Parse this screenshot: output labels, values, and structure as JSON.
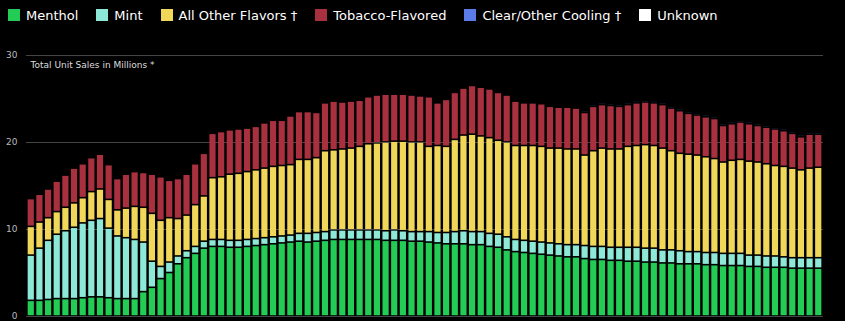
{
  "chart_data": {
    "type": "bar",
    "title": "Total Unit Sales in Millions *",
    "stacked": true,
    "grid": true,
    "legend": "top-left",
    "tick_labels": "y",
    "ylim": [
      0,
      30
    ],
    "yticks": [
      0,
      10,
      20,
      30
    ],
    "categories": [
      null,
      null,
      null,
      null,
      null,
      null,
      null,
      null,
      null,
      null,
      null,
      null,
      null,
      null,
      null,
      null,
      null,
      null,
      null,
      null,
      null,
      null,
      null,
      null,
      null,
      null,
      null,
      null,
      null,
      null,
      null,
      null,
      null,
      null,
      null,
      null,
      null,
      null,
      null,
      null,
      null,
      null,
      null,
      null,
      null,
      null,
      null,
      null,
      null,
      null,
      null,
      null,
      null,
      null,
      null,
      null,
      null,
      null,
      null,
      null,
      null,
      null,
      null,
      null,
      null,
      null,
      null,
      null,
      null,
      null,
      null,
      null,
      null,
      null,
      null,
      null,
      null,
      null,
      null,
      null,
      null,
      null,
      null,
      null,
      null,
      null,
      null,
      null,
      null,
      null,
      null,
      null
    ],
    "series": [
      {
        "name": "Menthol",
        "color": "#22cc55",
        "values": [
          1.8,
          1.8,
          1.9,
          2.0,
          2.0,
          2.0,
          2.1,
          2.2,
          2.2,
          2.1,
          2.0,
          2.0,
          2.0,
          2.8,
          3.3,
          4.3,
          5.0,
          6.0,
          6.7,
          7.2,
          7.8,
          8.0,
          8.0,
          7.9,
          7.9,
          8.0,
          8.1,
          8.2,
          8.3,
          8.4,
          8.5,
          8.6,
          8.5,
          8.6,
          8.7,
          8.8,
          8.8,
          8.8,
          8.8,
          8.8,
          8.8,
          8.7,
          8.7,
          8.7,
          8.6,
          8.6,
          8.5,
          8.4,
          8.3,
          8.3,
          8.3,
          8.2,
          8.2,
          8.0,
          7.9,
          7.6,
          7.4,
          7.3,
          7.2,
          7.1,
          7.0,
          6.9,
          6.8,
          6.8,
          6.6,
          6.5,
          6.5,
          6.4,
          6.4,
          6.3,
          6.3,
          6.2,
          6.2,
          6.1,
          6.1,
          6.0,
          6.0,
          6.0,
          5.9,
          5.9,
          5.8,
          5.8,
          5.8,
          5.7,
          5.7,
          5.6,
          5.6,
          5.6,
          5.5,
          5.5,
          5.5,
          5.5
        ]
      },
      {
        "name": "Mint",
        "color": "#8ee8d8",
        "values": [
          5.2,
          6.0,
          6.8,
          7.4,
          7.8,
          8.2,
          8.6,
          8.8,
          9.0,
          8.0,
          7.2,
          7.0,
          6.8,
          5.7,
          3.0,
          1.4,
          1.2,
          0.9,
          0.8,
          0.8,
          0.8,
          0.8,
          0.8,
          0.8,
          0.8,
          0.8,
          0.8,
          0.8,
          0.8,
          0.8,
          0.8,
          0.9,
          1.0,
          1.0,
          1.0,
          1.1,
          1.1,
          1.1,
          1.1,
          1.1,
          1.1,
          1.1,
          1.2,
          1.1,
          1.1,
          1.1,
          1.2,
          1.2,
          1.3,
          1.4,
          1.5,
          1.5,
          1.5,
          1.5,
          1.5,
          1.5,
          1.4,
          1.4,
          1.4,
          1.4,
          1.4,
          1.4,
          1.4,
          1.4,
          1.5,
          1.5,
          1.5,
          1.5,
          1.5,
          1.6,
          1.6,
          1.6,
          1.6,
          1.5,
          1.5,
          1.5,
          1.4,
          1.4,
          1.4,
          1.4,
          1.4,
          1.4,
          1.4,
          1.3,
          1.3,
          1.3,
          1.3,
          1.2,
          1.2,
          1.2,
          1.2,
          1.2
        ]
      },
      {
        "name": "All Other Flavors †",
        "color": "#f0d75a",
        "values": [
          3.3,
          3.0,
          2.6,
          2.6,
          2.7,
          2.8,
          2.9,
          3.3,
          3.4,
          3.3,
          3.0,
          3.4,
          3.8,
          4.0,
          5.5,
          5.3,
          5.1,
          4.3,
          4.1,
          4.8,
          5.2,
          7.1,
          7.2,
          7.6,
          7.7,
          7.8,
          7.9,
          8.0,
          8.1,
          8.1,
          8.1,
          8.5,
          8.5,
          8.6,
          9.3,
          9.2,
          9.3,
          9.4,
          9.6,
          9.9,
          10.0,
          10.2,
          10.2,
          10.3,
          10.3,
          10.3,
          9.8,
          10.0,
          9.9,
          10.6,
          11.0,
          11.2,
          11.0,
          11.0,
          10.8,
          10.9,
          10.8,
          10.9,
          11.0,
          11.0,
          10.9,
          11.0,
          11.0,
          11.0,
          10.4,
          11.0,
          11.3,
          11.3,
          11.3,
          11.6,
          11.7,
          11.9,
          11.8,
          11.7,
          11.4,
          11.2,
          11.2,
          11.1,
          11.0,
          10.8,
          10.5,
          10.7,
          10.8,
          10.8,
          10.7,
          10.6,
          10.4,
          10.4,
          10.3,
          10.1,
          10.3,
          10.4
        ]
      },
      {
        "name": "Tobacco-Flavored",
        "color": "#a8303f",
        "values": [
          3.2,
          3.2,
          3.3,
          3.5,
          3.7,
          4.0,
          3.9,
          3.9,
          4.0,
          4.0,
          3.6,
          3.9,
          4.0,
          4.0,
          4.5,
          5.0,
          4.3,
          4.6,
          4.7,
          4.7,
          4.9,
          5.1,
          5.2,
          5.1,
          5.1,
          5.0,
          5.0,
          5.2,
          5.3,
          5.2,
          5.6,
          5.5,
          5.5,
          5.2,
          5.5,
          5.6,
          5.4,
          5.4,
          5.3,
          5.4,
          5.5,
          5.5,
          5.4,
          5.4,
          5.4,
          5.3,
          5.7,
          4.9,
          5.4,
          5.4,
          5.4,
          5.6,
          5.6,
          5.6,
          5.5,
          5.4,
          5.1,
          4.9,
          4.9,
          4.9,
          4.8,
          4.7,
          4.8,
          4.7,
          4.9,
          5.1,
          5.0,
          5.0,
          4.9,
          4.8,
          4.9,
          4.9,
          4.9,
          5.0,
          4.9,
          4.9,
          4.7,
          4.6,
          4.6,
          4.6,
          4.2,
          4.2,
          4.3,
          4.3,
          4.2,
          4.2,
          4.2,
          4.1,
          4.0,
          3.8,
          3.9,
          3.8
        ]
      },
      {
        "name": "Clear/Other Cooling †",
        "color": "#5b7be8",
        "values": [
          0,
          0,
          0,
          0,
          0,
          0,
          0,
          0,
          0,
          0,
          0,
          0,
          0,
          0,
          0,
          0,
          0,
          0,
          0,
          0,
          0,
          0,
          0,
          0,
          0,
          0,
          0,
          0,
          0,
          0,
          0,
          0,
          0,
          0,
          0,
          0,
          0,
          0,
          0,
          0,
          0,
          0,
          0,
          0,
          0,
          0,
          0,
          0,
          0,
          0,
          0,
          0,
          0,
          0,
          0,
          0,
          0,
          0,
          0,
          0,
          0,
          0,
          0,
          0,
          0.2,
          0.2,
          0.2,
          0.2,
          0.2,
          0.2,
          0.2,
          0.2,
          0.2,
          0.2,
          0.2,
          0.2,
          0.2,
          0.2,
          0.2,
          0.2,
          0.2,
          0.2,
          0.2,
          0.2,
          0.2,
          0.2,
          0.2,
          0.2,
          0.2,
          0.2,
          0.2,
          0.2
        ]
      },
      {
        "name": "Unknown",
        "color": "#ffffff",
        "values": [
          0,
          0,
          0,
          0,
          0,
          0,
          0,
          0,
          0,
          0,
          0,
          0,
          0,
          0,
          0,
          0,
          0,
          0,
          0,
          0,
          0,
          0,
          0,
          0,
          0,
          0,
          0,
          0,
          0,
          0,
          0,
          0,
          0,
          0,
          0,
          0,
          0,
          0,
          0,
          0,
          0,
          0,
          0,
          0,
          0,
          0,
          0,
          0,
          0,
          0,
          0,
          0,
          0,
          0,
          0,
          0,
          0,
          0,
          0,
          0,
          0,
          0,
          0,
          0,
          0.1,
          0.1,
          0.1,
          0.1,
          0.1,
          0.1,
          0.1,
          0.1,
          0.1,
          0.1,
          0.1,
          0.1,
          0.1,
          0.1,
          0.1,
          0.1,
          0.1,
          0.1,
          0.1,
          0.1,
          0.1,
          0.1,
          0.1,
          0.1,
          0.1,
          0.1,
          0.1,
          0.1
        ]
      }
    ]
  }
}
